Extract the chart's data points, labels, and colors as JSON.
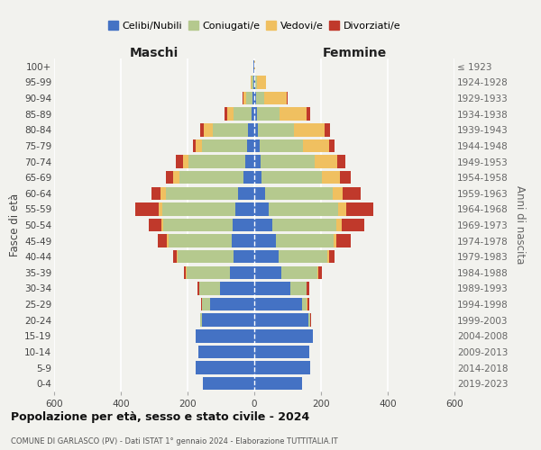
{
  "age_groups": [
    "0-4",
    "5-9",
    "10-14",
    "15-19",
    "20-24",
    "25-29",
    "30-34",
    "35-39",
    "40-44",
    "45-49",
    "50-54",
    "55-59",
    "60-64",
    "65-69",
    "70-74",
    "75-79",
    "80-84",
    "85-89",
    "90-94",
    "95-99",
    "100+"
  ],
  "birth_years": [
    "2019-2023",
    "2014-2018",
    "2009-2013",
    "2004-2008",
    "1999-2003",
    "1994-1998",
    "1989-1993",
    "1984-1988",
    "1979-1983",
    "1974-1978",
    "1969-1973",
    "1964-1968",
    "1959-1963",
    "1954-1958",
    "1949-1953",
    "1944-1948",
    "1939-1943",
    "1934-1938",
    "1929-1933",
    "1924-1928",
    "≤ 1923"
  ],
  "males": {
    "celibe": [
      155,
      175,
      168,
      175,
      158,
      132,
      102,
      72,
      62,
      68,
      65,
      58,
      48,
      32,
      28,
      22,
      18,
      8,
      5,
      3,
      2
    ],
    "coniugato": [
      0,
      0,
      0,
      2,
      5,
      25,
      62,
      132,
      168,
      188,
      208,
      218,
      218,
      192,
      168,
      135,
      105,
      55,
      20,
      5,
      0
    ],
    "vedovo": [
      0,
      0,
      0,
      0,
      0,
      0,
      2,
      2,
      2,
      5,
      5,
      10,
      15,
      18,
      18,
      18,
      28,
      18,
      8,
      2,
      0
    ],
    "divorziato": [
      0,
      0,
      0,
      0,
      0,
      2,
      5,
      5,
      12,
      28,
      38,
      72,
      28,
      22,
      20,
      10,
      12,
      8,
      2,
      0,
      0
    ]
  },
  "females": {
    "nubile": [
      142,
      168,
      165,
      175,
      162,
      142,
      108,
      82,
      72,
      65,
      55,
      42,
      32,
      22,
      18,
      15,
      12,
      8,
      5,
      2,
      1
    ],
    "coniugata": [
      0,
      0,
      0,
      2,
      5,
      15,
      48,
      108,
      148,
      172,
      192,
      208,
      202,
      182,
      162,
      132,
      108,
      68,
      25,
      5,
      0
    ],
    "vedova": [
      0,
      0,
      0,
      0,
      0,
      2,
      2,
      3,
      5,
      10,
      15,
      25,
      32,
      52,
      68,
      78,
      92,
      82,
      68,
      28,
      2
    ],
    "divorziata": [
      0,
      0,
      0,
      0,
      2,
      5,
      8,
      10,
      15,
      42,
      68,
      82,
      52,
      32,
      25,
      15,
      15,
      10,
      3,
      0,
      0
    ]
  },
  "colors": {
    "celibe": "#4472C4",
    "coniugato": "#b5c98e",
    "vedovo": "#f0c060",
    "divorziato": "#c0392b"
  },
  "xlim": 600,
  "xticks": [
    -600,
    -400,
    -200,
    0,
    200,
    400,
    600
  ],
  "title": "Popolazione per età, sesso e stato civile - 2024",
  "subtitle": "COMUNE DI GARLASCO (PV) - Dati ISTAT 1° gennaio 2024 - Elaborazione TUTTITALIA.IT",
  "xlabel_left": "Maschi",
  "xlabel_right": "Femmine",
  "ylabel_left": "Fasce di età",
  "ylabel_right": "Anni di nascita",
  "bg_color": "#f2f2ee",
  "legend_labels": [
    "Celibi/Nubili",
    "Coniugati/e",
    "Vedovi/e",
    "Divorziati/e"
  ]
}
